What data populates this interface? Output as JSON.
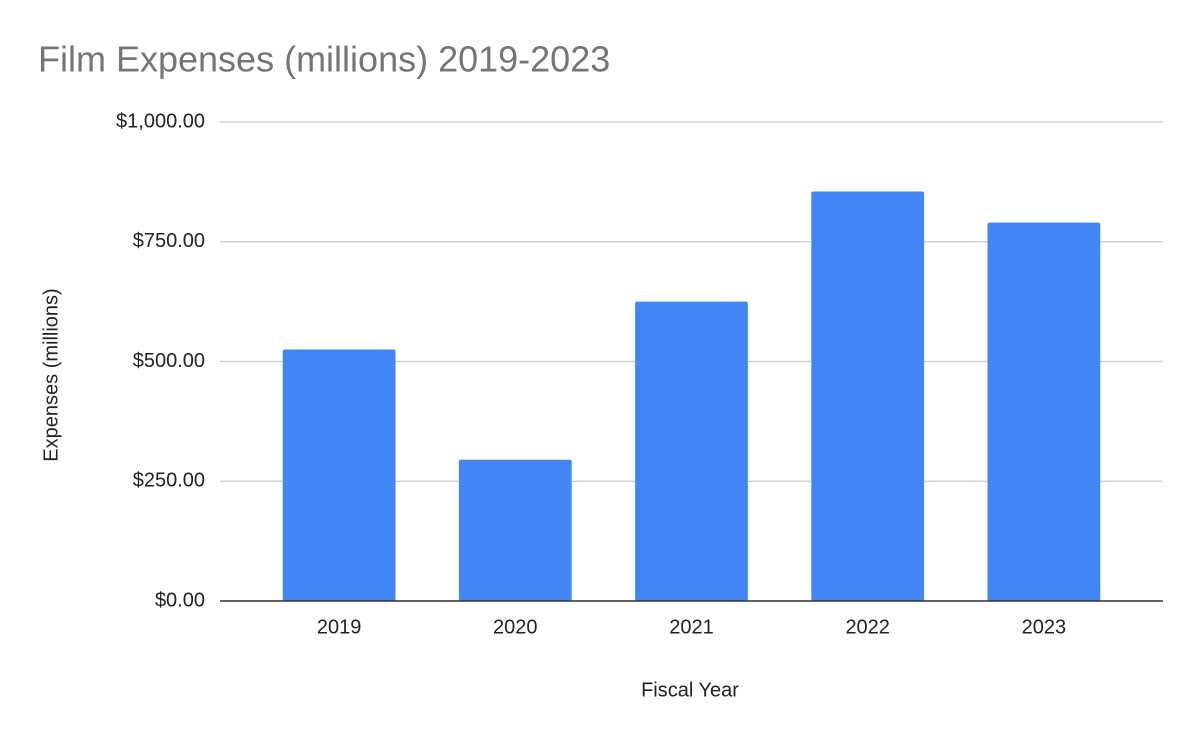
{
  "chart_data": {
    "type": "bar",
    "title": "Film Expenses (millions) 2019-2023",
    "x_label": "Fiscal Year",
    "y_label": "Expenses (millions)",
    "categories": [
      "2019",
      "2020",
      "2021",
      "2022",
      "2023"
    ],
    "values": [
      525,
      295,
      625,
      855,
      790
    ],
    "color": "#4285f4",
    "ylim": [
      0,
      1000
    ],
    "yticks": [
      {
        "value": 0,
        "label": "$0.00"
      },
      {
        "value": 250,
        "label": "$250.00"
      },
      {
        "value": 500,
        "label": "$500.00"
      },
      {
        "value": 750,
        "label": "$750.00"
      },
      {
        "value": 1000,
        "label": "$1,000.00"
      }
    ],
    "grid": true
  }
}
